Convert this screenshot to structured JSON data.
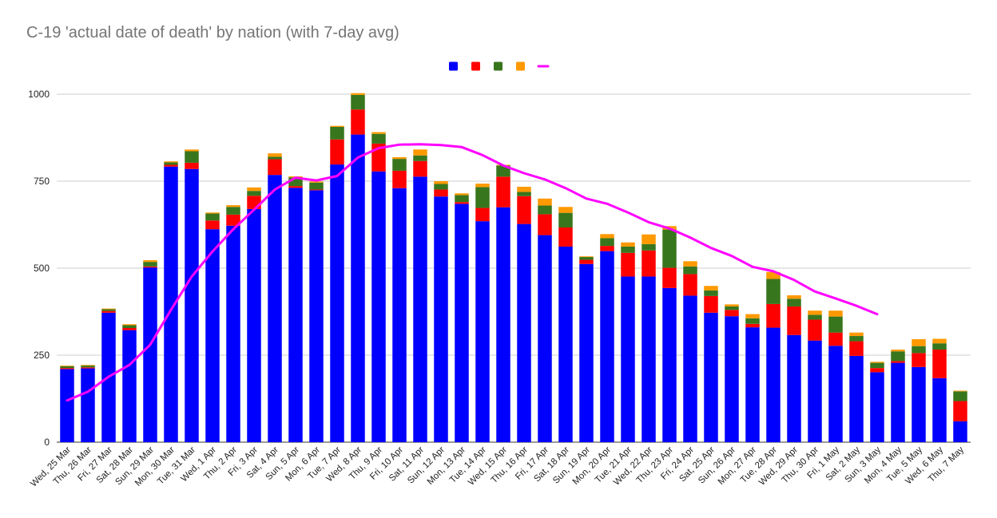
{
  "chart_data": {
    "type": "bar",
    "stacked": true,
    "title": "C-19 'actual date of death' by nation (with 7-day avg)",
    "xlabel": "",
    "ylabel": "",
    "ylim": [
      0,
      1000
    ],
    "yticks": [
      0,
      250,
      500,
      750,
      1000
    ],
    "grid": true,
    "legend_position": "top-center",
    "categories": [
      "Wed, 25 Mar",
      "Thu, 26 Mar",
      "Fri, 27 Mar",
      "Sat, 28 Mar",
      "Sun, 29 Mar",
      "Mon, 30 Mar",
      "Tue, 31 Mar",
      "Wed, 1 Apr",
      "Thu, 2 Apr",
      "Fri, 3 Apr",
      "Sat, 4 Apr",
      "Sun, 5 Apr",
      "Mon, 6 Apr",
      "Tue, 7 Apr",
      "Wed, 8 Apr",
      "Thu, 9 Apr",
      "Fri, 10 Apr",
      "Sat, 11 Apr",
      "Sun, 12 Apr",
      "Mon, 13 Apr",
      "Tue, 14 Apr",
      "Wed, 15 Apr",
      "Thu, 16 Apr",
      "Fri, 17 Apr",
      "Sat, 18 Apr",
      "Sun, 19 Apr",
      "Mon, 20 Apr",
      "Tue, 21 Apr",
      "Wed, 22 Apr",
      "Thu, 23 Apr",
      "Fri, 24 Apr",
      "Sat, 25 Apr",
      "Sun, 26 Apr",
      "Mon, 27 Apr",
      "Tue, 28 Apr",
      "Wed, 29 Apr",
      "Thu, 30 Apr",
      "Fri, 1 May",
      "Sat, 2 May",
      "Sun, 3 May",
      "Mon, 4 May",
      "Tue, 5 May",
      "Wed, 6 May",
      "Thu, 7 May"
    ],
    "series": [
      {
        "color": "#0000ff",
        "values": [
          210,
          212,
          372,
          322,
          502,
          792,
          785,
          612,
          622,
          670,
          768,
          731,
          724,
          798,
          884,
          778,
          730,
          763,
          706,
          685,
          635,
          675,
          627,
          595,
          562,
          512,
          549,
          476,
          476,
          443,
          421,
          372,
          362,
          330,
          329,
          308,
          292,
          277,
          248,
          201,
          228,
          216,
          184,
          60
        ]
      },
      {
        "color": "#ff0000",
        "values": [
          3,
          3,
          5,
          6,
          3,
          5,
          18,
          25,
          32,
          38,
          45,
          5,
          2,
          72,
          72,
          80,
          50,
          45,
          20,
          5,
          38,
          88,
          80,
          60,
          55,
          12,
          15,
          68,
          75,
          58,
          62,
          48,
          18,
          10,
          68,
          82,
          60,
          38,
          42,
          12,
          5,
          40,
          82,
          58
        ]
      },
      {
        "color": "#38761d",
        "values": [
          5,
          5,
          5,
          8,
          13,
          7,
          33,
          20,
          22,
          14,
          7,
          25,
          20,
          36,
          42,
          28,
          34,
          16,
          16,
          20,
          60,
          32,
          12,
          25,
          42,
          8,
          22,
          18,
          18,
          110,
          22,
          16,
          10,
          16,
          72,
          22,
          14,
          46,
          15,
          15,
          28,
          20,
          18,
          28
        ]
      },
      {
        "color": "#ff9900",
        "values": [
          2,
          2,
          2,
          3,
          5,
          3,
          5,
          3,
          5,
          10,
          10,
          3,
          3,
          3,
          5,
          5,
          5,
          17,
          8,
          5,
          10,
          2,
          15,
          20,
          17,
          2,
          12,
          12,
          28,
          10,
          15,
          13,
          6,
          12,
          20,
          10,
          12,
          17,
          10,
          3,
          5,
          20,
          13,
          2
        ]
      },
      {
        "color": "#ff00ff",
        "type": "line",
        "values": [
          120,
          145,
          188,
          222,
          280,
          380,
          476,
          548,
          612,
          668,
          726,
          760,
          752,
          765,
          818,
          845,
          855,
          856,
          854,
          848,
          825,
          795,
          773,
          755,
          730,
          700,
          685,
          660,
          632,
          614,
          588,
          558,
          535,
          504,
          491,
          466,
          433,
          413,
          392,
          368,
          null,
          null,
          null,
          null
        ]
      }
    ]
  }
}
